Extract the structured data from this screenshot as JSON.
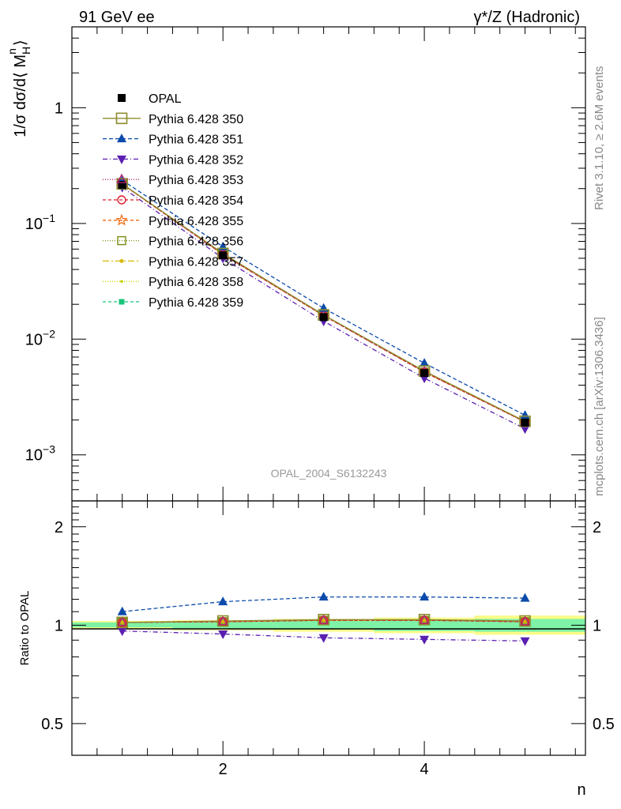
{
  "header": {
    "left_title": "91 GeV ee",
    "right_title": "γ*/Z (Hadronic)"
  },
  "side_labels": {
    "rivet": "Rivet 3.1.10, ≥ 2.6M events",
    "mcplots": "mcplots.cern.ch [arXiv:1306.3436]"
  },
  "watermark": "OPAL_2004_S6132243",
  "chart_data": [
    {
      "type": "line",
      "panel": "main",
      "ylabel_parts": {
        "prefix": "1/σ dσ/d⟨ M",
        "sup": "n",
        "sub": "H",
        "suffix": "⟩"
      },
      "yscale": "log",
      "ylim": [
        0.0004,
        5
      ],
      "yticks": [
        {
          "value": 1,
          "base": "1",
          "exp": ""
        },
        {
          "value": 0.1,
          "base": "10",
          "exp": "−1"
        },
        {
          "value": 0.01,
          "base": "10",
          "exp": "−2"
        },
        {
          "value": 0.001,
          "base": "10",
          "exp": "−3"
        }
      ],
      "xlim": [
        0.5,
        5.6
      ],
      "x": [
        1,
        2,
        3,
        4,
        5
      ],
      "legend_position": "top-left",
      "series": [
        {
          "name": "OPAL",
          "values": [
            0.215,
            0.053,
            0.0155,
            0.0051,
            0.0019
          ],
          "color": "#000000",
          "marker": "square-filled",
          "dash": "none",
          "line": false,
          "band": true
        },
        {
          "name": "Pythia 6.428 350",
          "values": [
            0.22,
            0.055,
            0.0162,
            0.0053,
            0.00195
          ],
          "color": "#8c8c2e",
          "marker": "square-open-large",
          "dash": "none",
          "line": true
        },
        {
          "name": "Pythia 6.428 351",
          "values": [
            0.236,
            0.063,
            0.0185,
            0.0062,
            0.0022
          ],
          "color": "#0b4bab",
          "marker": "triangle-up",
          "dash": "5,3"
        },
        {
          "name": "Pythia 6.428 352",
          "values": [
            0.205,
            0.05,
            0.0143,
            0.0046,
            0.00168
          ],
          "color": "#5a1fb0",
          "marker": "triangle-down",
          "dash": "6,3,1,3"
        },
        {
          "name": "Pythia 6.428 353",
          "values": [
            0.219,
            0.054,
            0.016,
            0.0052,
            0.00193
          ],
          "color": "#b0206e",
          "marker": "triangle-open",
          "dash": "1,2"
        },
        {
          "name": "Pythia 6.428 354",
          "values": [
            0.219,
            0.054,
            0.016,
            0.0052,
            0.00193
          ],
          "color": "#dd1c2a",
          "marker": "circle-open",
          "dash": "4,3"
        },
        {
          "name": "Pythia 6.428 355",
          "values": [
            0.219,
            0.054,
            0.016,
            0.0052,
            0.00193
          ],
          "color": "#f06a10",
          "marker": "star-open",
          "dash": "4,3"
        },
        {
          "name": "Pythia 6.428 356",
          "values": [
            0.219,
            0.054,
            0.016,
            0.0052,
            0.00193
          ],
          "color": "#7a8c10",
          "marker": "square-open",
          "dash": "1,2"
        },
        {
          "name": "Pythia 6.428 357",
          "values": [
            0.219,
            0.054,
            0.016,
            0.0052,
            0.00193
          ],
          "color": "#d8b800",
          "marker": "dot",
          "dash": "8,3,2,3"
        },
        {
          "name": "Pythia 6.428 358",
          "values": [
            0.219,
            0.054,
            0.016,
            0.0052,
            0.00193
          ],
          "color": "#c8d400",
          "marker": "dot-small",
          "dash": "1,2"
        },
        {
          "name": "Pythia 6.428 359",
          "values": [
            0.219,
            0.054,
            0.016,
            0.0052,
            0.00193
          ],
          "color": "#19c47a",
          "marker": "square-filled-small",
          "dash": "4,3"
        }
      ]
    },
    {
      "type": "line",
      "panel": "ratio",
      "ylabel": "Ratio to OPAL",
      "yscale": "log",
      "ylim": [
        0.4,
        2.4
      ],
      "yticks": [
        {
          "value": 2,
          "label": "2"
        },
        {
          "value": 1,
          "label": "1"
        },
        {
          "value": 0.5,
          "label": "0.5"
        }
      ],
      "xlabel": "n",
      "xlim": [
        0.5,
        5.6
      ],
      "xticks": [
        {
          "value": 2,
          "label": "2"
        },
        {
          "value": 4,
          "label": "4"
        }
      ],
      "x": [
        1,
        2,
        3,
        4,
        5
      ],
      "bands": {
        "inner_color": "#7ef2a6",
        "outer_color": "#fbfb88",
        "inner": [
          [
            0.985,
            1.02
          ],
          [
            0.975,
            1.025
          ],
          [
            0.97,
            1.03
          ],
          [
            0.96,
            1.04
          ],
          [
            0.955,
            1.045
          ]
        ],
        "outer": [
          [
            0.975,
            1.03
          ],
          [
            0.965,
            1.035
          ],
          [
            0.955,
            1.045
          ],
          [
            0.945,
            1.055
          ],
          [
            0.935,
            1.07
          ]
        ]
      },
      "series": [
        {
          "name": "Pythia 6.428 350",
          "values": [
            1.02,
            1.03,
            1.04,
            1.04,
            1.03
          ],
          "color": "#8c8c2e",
          "marker": "square-open-large",
          "dash": "none"
        },
        {
          "name": "Pythia 6.428 351",
          "values": [
            1.1,
            1.18,
            1.22,
            1.22,
            1.21
          ],
          "color": "#0b4bab",
          "marker": "triangle-up",
          "dash": "5,3"
        },
        {
          "name": "Pythia 6.428 352",
          "values": [
            0.96,
            0.94,
            0.915,
            0.905,
            0.895
          ],
          "color": "#5a1fb0",
          "marker": "triangle-down",
          "dash": "6,3,1,3"
        },
        {
          "name": "Pythia 6.428 353",
          "values": [
            1.02,
            1.025,
            1.035,
            1.035,
            1.025
          ],
          "color": "#b0206e",
          "marker": "triangle-open",
          "dash": "1,2"
        },
        {
          "name": "Pythia 6.428 354",
          "values": [
            1.02,
            1.025,
            1.035,
            1.035,
            1.025
          ],
          "color": "#dd1c2a",
          "marker": "circle-open",
          "dash": "4,3"
        },
        {
          "name": "Pythia 6.428 355",
          "values": [
            1.02,
            1.025,
            1.035,
            1.035,
            1.025
          ],
          "color": "#f06a10",
          "marker": "star-open",
          "dash": "4,3"
        },
        {
          "name": "Pythia 6.428 356",
          "values": [
            1.02,
            1.025,
            1.035,
            1.035,
            1.025
          ],
          "color": "#7a8c10",
          "marker": "square-open",
          "dash": "1,2"
        },
        {
          "name": "Pythia 6.428 357",
          "values": [
            1.02,
            1.025,
            1.035,
            1.035,
            1.025
          ],
          "color": "#d8b800",
          "marker": "dot",
          "dash": "8,3,2,3"
        },
        {
          "name": "Pythia 6.428 358",
          "values": [
            1.02,
            1.025,
            1.035,
            1.035,
            1.025
          ],
          "color": "#c8d400",
          "marker": "dot-small",
          "dash": "1,2"
        },
        {
          "name": "Pythia 6.428 359",
          "values": [
            1.02,
            1.025,
            1.035,
            1.035,
            1.025
          ],
          "color": "#19c47a",
          "marker": "square-filled-small",
          "dash": "4,3"
        }
      ]
    }
  ]
}
